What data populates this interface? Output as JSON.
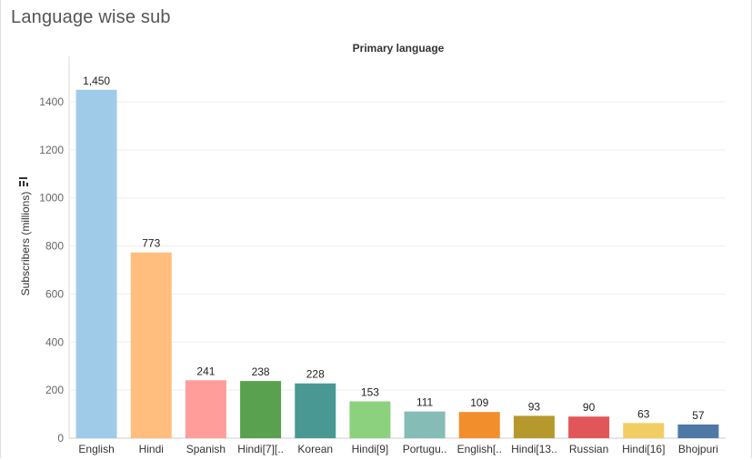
{
  "header": {
    "title": "Language wise sub",
    "column_header": "Primary language"
  },
  "icons": {
    "sort": "sort-icon"
  },
  "chart_data": {
    "type": "bar",
    "title": "",
    "xlabel": "Primary language",
    "ylabel": "Subscribers (millions)",
    "ylim": [
      0,
      1500
    ],
    "yticks": [
      0,
      200,
      400,
      600,
      800,
      1000,
      1200,
      1400
    ],
    "grid": true,
    "categories": [
      "English",
      "Hindi",
      "Spanish",
      "Hindi[7][..",
      "Korean",
      "Hindi[9]",
      "Portugu..",
      "English[..",
      "Hindi[13..",
      "Russian",
      "Hindi[16]",
      "Bhojpuri"
    ],
    "values": [
      1450,
      773,
      241,
      238,
      228,
      153,
      111,
      109,
      93,
      90,
      63,
      57
    ],
    "value_labels": [
      "1,450",
      "773",
      "241",
      "238",
      "228",
      "153",
      "111",
      "109",
      "93",
      "90",
      "63",
      "57"
    ],
    "colors": [
      "#a0cbe8",
      "#ffbe7d",
      "#ff9d9a",
      "#59a14f",
      "#499894",
      "#8cd17d",
      "#86bcb6",
      "#f28e2b",
      "#b6992d",
      "#e15759",
      "#f1ce63",
      "#4e79a7"
    ]
  }
}
